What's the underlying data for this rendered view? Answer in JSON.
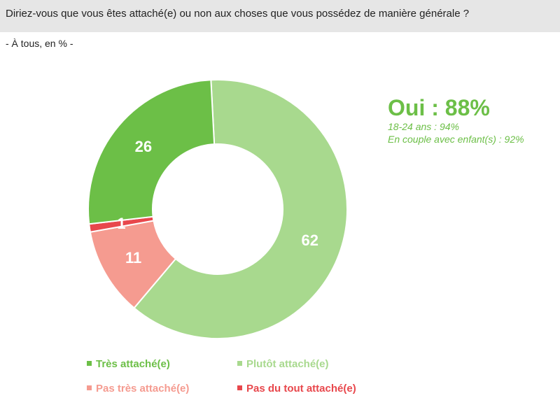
{
  "header": {
    "question": "Diriez-vous que vous êtes attaché(e) ou non aux choses que vous possédez de manière générale ?"
  },
  "subtitle": "- À tous, en % -",
  "callout": {
    "title": "Oui : 88%",
    "lines": [
      "18-24 ans : 94%",
      "En couple avec enfant(s) : 92%"
    ]
  },
  "chart_data": {
    "type": "pie",
    "variant": "donut",
    "categories": [
      "Plutôt attaché(e)",
      "Pas très attaché(e)",
      "Pas du tout attaché(e)",
      "Très attaché(e)"
    ],
    "values": [
      62,
      11,
      1,
      26
    ],
    "value_labels": [
      "62",
      "11",
      "1",
      "26"
    ],
    "colors": [
      "#a8d98e",
      "#f59b90",
      "#e8474c",
      "#6cbf47"
    ],
    "legend": {
      "placement": "bottom",
      "items": [
        {
          "label": "Très attaché(e)",
          "color": "#6cbf47"
        },
        {
          "label": "Plutôt attaché(e)",
          "color": "#a8d98e"
        },
        {
          "label": "Pas très attaché(e)",
          "color": "#f59b90"
        },
        {
          "label": "Pas du tout attaché(e)",
          "color": "#e8474c"
        }
      ]
    }
  }
}
